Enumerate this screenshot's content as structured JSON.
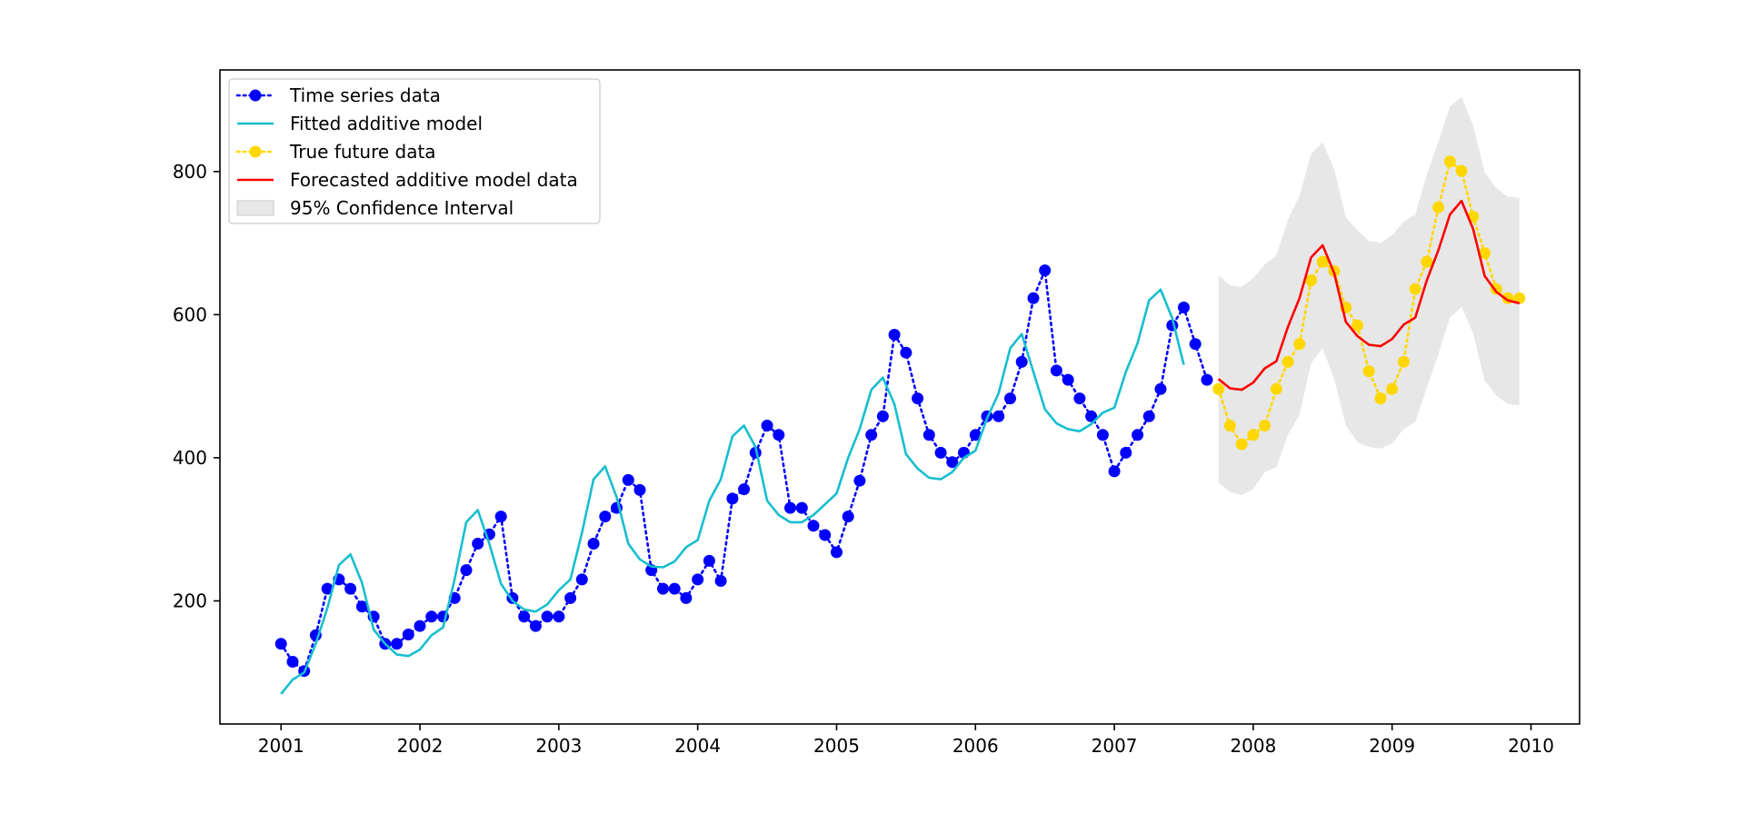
{
  "chart_data": {
    "type": "line",
    "title": "",
    "xlabel": "",
    "ylabel": "",
    "xlim": [
      2000.56,
      2010.35
    ],
    "ylim": [
      28,
      942
    ],
    "x_ticks": [
      {
        "value": 2001,
        "label": "2001"
      },
      {
        "value": 2002,
        "label": "2002"
      },
      {
        "value": 2003,
        "label": "2003"
      },
      {
        "value": 2004,
        "label": "2004"
      },
      {
        "value": 2005,
        "label": "2005"
      },
      {
        "value": 2006,
        "label": "2006"
      },
      {
        "value": 2007,
        "label": "2007"
      },
      {
        "value": 2008,
        "label": "2008"
      },
      {
        "value": 2009,
        "label": "2009"
      },
      {
        "value": 2010,
        "label": "2010"
      }
    ],
    "y_ticks": [
      {
        "value": 200,
        "label": "200"
      },
      {
        "value": 400,
        "label": "400"
      },
      {
        "value": 600,
        "label": "600"
      },
      {
        "value": 800,
        "label": "800"
      }
    ],
    "grid": false,
    "legend_position": "top-left",
    "colors": {
      "observed": "#0000ff",
      "fitted": "#17becf",
      "future": "#ffd700",
      "forecast": "#ff0000",
      "ci": "#d3d3d3"
    },
    "legend": [
      {
        "key": "observed",
        "label": "Time series data",
        "style": "dotted-marker"
      },
      {
        "key": "fitted",
        "label": "Fitted additive model",
        "style": "solid"
      },
      {
        "key": "future",
        "label": "True future data",
        "style": "dotted-marker"
      },
      {
        "key": "forecast",
        "label": "Forecasted additive model data",
        "style": "solid"
      },
      {
        "key": "ci",
        "label": "95% Confidence Interval",
        "style": "patch"
      }
    ],
    "x_observed_start": "2001-01",
    "x_forecast_start": "2007-10",
    "observed": [
      140,
      115,
      102,
      152,
      217,
      230,
      217,
      192,
      178,
      140,
      140,
      153,
      165,
      178,
      178,
      204,
      243,
      280,
      293,
      318,
      204,
      178,
      165,
      178,
      178,
      204,
      230,
      280,
      318,
      330,
      369,
      355,
      243,
      217,
      217,
      204,
      230,
      256,
      228,
      343,
      356,
      407,
      445,
      432,
      330,
      330,
      305,
      292,
      268,
      318,
      368,
      432,
      458,
      572,
      547,
      483,
      432,
      407,
      394,
      407,
      432,
      458,
      458,
      483,
      534,
      623,
      662,
      522,
      509,
      483,
      458,
      432,
      381,
      407,
      432,
      458,
      496,
      585,
      610,
      559,
      509
    ],
    "fitted": [
      70,
      90,
      100,
      140,
      190,
      250,
      265,
      225,
      160,
      140,
      125,
      123,
      132,
      152,
      163,
      230,
      310,
      327,
      280,
      224,
      200,
      188,
      185,
      195,
      215,
      230,
      295,
      370,
      388,
      345,
      280,
      258,
      248,
      247,
      255,
      275,
      285,
      340,
      370,
      430,
      445,
      415,
      340,
      320,
      310,
      310,
      320,
      335,
      350,
      400,
      440,
      495,
      512,
      475,
      405,
      385,
      372,
      370,
      380,
      400,
      410,
      455,
      490,
      553,
      573,
      520,
      468,
      448,
      440,
      437,
      447,
      463,
      470,
      520,
      560,
      620,
      635,
      595,
      530
    ],
    "future": [
      496,
      445,
      419,
      432,
      445,
      496,
      534,
      559,
      648,
      674,
      661,
      610,
      585,
      521,
      483,
      496,
      534,
      636,
      674,
      750,
      814,
      801,
      737,
      686,
      636,
      623,
      623
    ],
    "forecast": [
      510,
      497,
      495,
      505,
      525,
      535,
      583,
      623,
      680,
      697,
      658,
      590,
      570,
      558,
      556,
      566,
      586,
      596,
      648,
      690,
      740,
      759,
      720,
      654,
      632,
      620,
      616
    ],
    "ci_lower": [
      365,
      352,
      348,
      356,
      380,
      387,
      432,
      460,
      532,
      553,
      510,
      445,
      422,
      415,
      413,
      420,
      440,
      450,
      497,
      545,
      596,
      611,
      574,
      508,
      487,
      475,
      473
    ],
    "ci_upper": [
      655,
      641,
      639,
      651,
      670,
      683,
      733,
      766,
      825,
      841,
      803,
      736,
      718,
      703,
      700,
      711,
      730,
      740,
      796,
      841,
      891,
      904,
      865,
      799,
      777,
      765,
      763
    ]
  }
}
